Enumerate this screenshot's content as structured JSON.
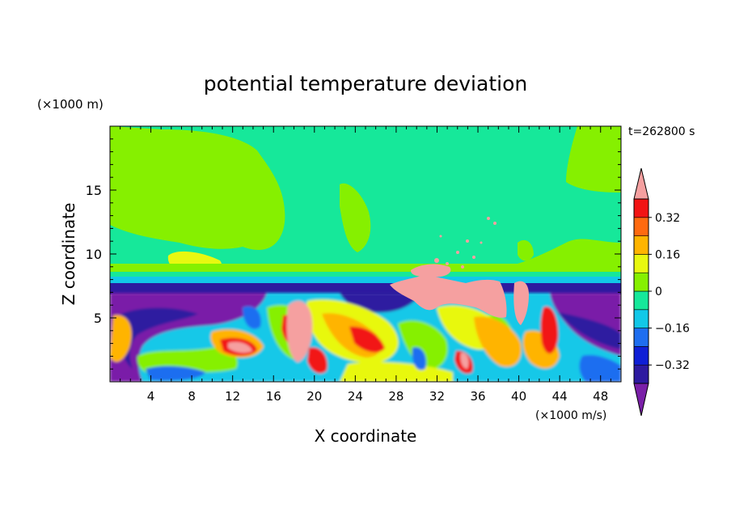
{
  "chart_data": {
    "type": "heatmap",
    "title": "potential temperature deviation",
    "xlabel": "X coordinate",
    "ylabel": "Z coordinate",
    "x_unit": "(×1000 m/s)",
    "y_unit": "(×1000 m)",
    "time_label": "t=262800 s",
    "xlim": [
      0,
      50
    ],
    "ylim": [
      0,
      20
    ],
    "x_ticks": [
      4,
      8,
      12,
      16,
      20,
      24,
      28,
      32,
      36,
      40,
      44,
      48
    ],
    "y_ticks": [
      5,
      10,
      15
    ],
    "colorbar": {
      "levels": [
        -0.48,
        -0.4,
        -0.32,
        -0.24,
        -0.16,
        -0.08,
        0,
        0.08,
        0.16,
        0.24,
        0.32,
        0.4
      ],
      "labeled_levels": [
        0.32,
        0.16,
        0,
        -0.16,
        -0.32
      ],
      "colors": [
        "#7a1fa8",
        "#2d1aa0",
        "#0f1fd6",
        "#1e6ef0",
        "#12c8e8",
        "#16e89a",
        "#86f000",
        "#e8f810",
        "#ffb400",
        "#ff6a10",
        "#f21414",
        "#f5a0a0"
      ],
      "extend": "both"
    },
    "grid": false
  }
}
